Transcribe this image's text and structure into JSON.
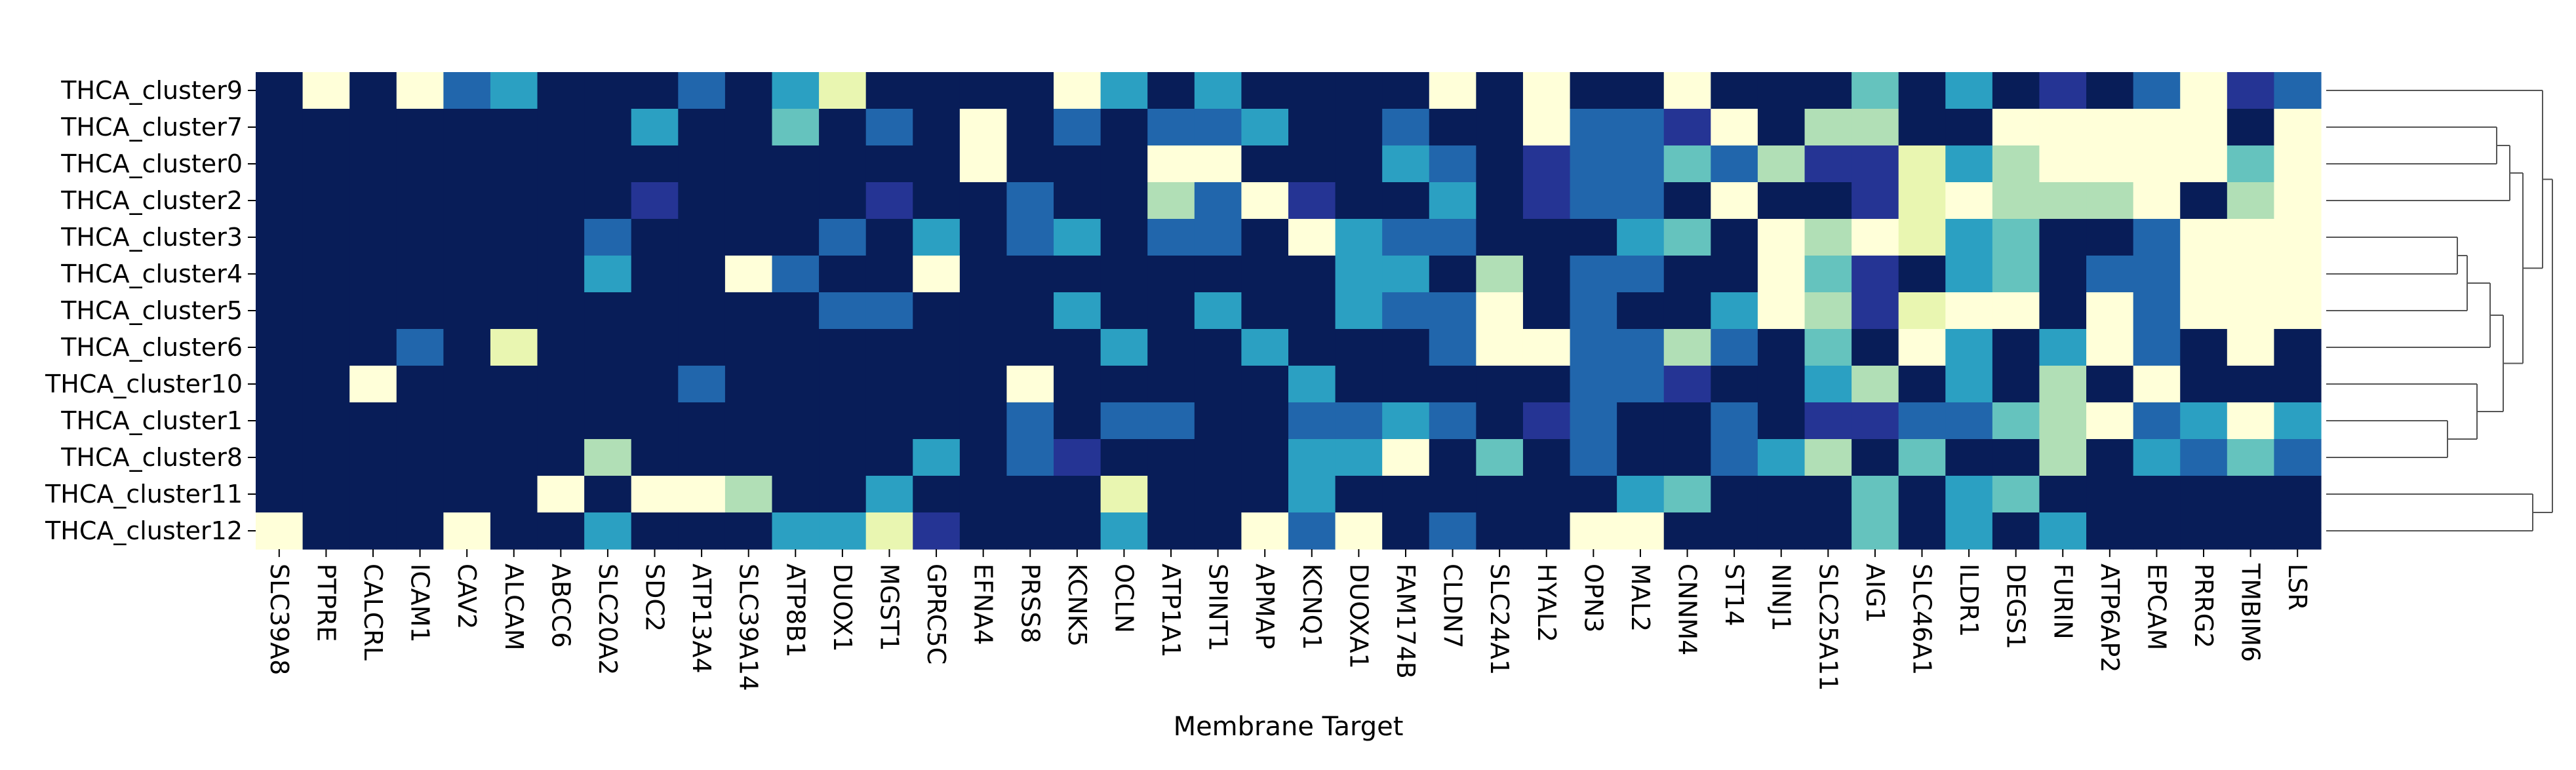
{
  "chart_data": {
    "type": "heatmap",
    "title": "",
    "xlabel": "Membrane Target",
    "ylabel": "",
    "colormap": "YlGnBu",
    "levels": [
      "#ffffd9",
      "#e9f6b1",
      "#b1dfb6",
      "#65c3be",
      "#2ba0c2",
      "#2166ac",
      "#253494",
      "#081d58"
    ],
    "dendrogram": "right",
    "rows": [
      "THCA_cluster9",
      "THCA_cluster7",
      "THCA_cluster0",
      "THCA_cluster2",
      "THCA_cluster3",
      "THCA_cluster4",
      "THCA_cluster5",
      "THCA_cluster6",
      "THCA_cluster10",
      "THCA_cluster1",
      "THCA_cluster8",
      "THCA_cluster11",
      "THCA_cluster12"
    ],
    "columns": [
      "SLC39A8",
      "PTPRE",
      "CALCRL",
      "ICAM1",
      "CAV2",
      "ALCAM",
      "ABCC6",
      "SLC20A2",
      "SDC2",
      "ATP13A4",
      "SLC39A14",
      "ATP8B1",
      "DUOX1",
      "MGST1",
      "GPRC5C",
      "EFNA4",
      "PRSS8",
      "KCNK5",
      "OCLN",
      "ATP1A1",
      "SPINT1",
      "APMAP",
      "KCNQ1",
      "DUOXA1",
      "FAM174B",
      "CLDN7",
      "SLC24A1",
      "HYAL2",
      "OPN3",
      "MAL2",
      "CNNM4",
      "ST14",
      "NINJ1",
      "SLC25A11",
      "AIG1",
      "SLC46A1",
      "ILDR1",
      "DEGS1",
      "FURIN",
      "ATP6AP2",
      "EPCAM",
      "PRRG2",
      "TMBIM6",
      "LSR"
    ],
    "values": [
      [
        7,
        0,
        7,
        0,
        5,
        4,
        7,
        7,
        7,
        5,
        7,
        4,
        1,
        7,
        7,
        7,
        7,
        0,
        4,
        7,
        4,
        7,
        7,
        7,
        7,
        0,
        7,
        0,
        7,
        7,
        0,
        7,
        7,
        7,
        3,
        7,
        4,
        7,
        6,
        7,
        5,
        0,
        6,
        5
      ],
      [
        7,
        7,
        7,
        7,
        7,
        7,
        7,
        7,
        4,
        7,
        7,
        3,
        7,
        5,
        7,
        0,
        7,
        5,
        7,
        5,
        5,
        4,
        7,
        7,
        5,
        7,
        7,
        0,
        5,
        5,
        6,
        0,
        7,
        2,
        2,
        7,
        7,
        0,
        0,
        0,
        0,
        0,
        7,
        0
      ],
      [
        7,
        7,
        7,
        7,
        7,
        7,
        7,
        7,
        7,
        7,
        7,
        7,
        7,
        7,
        7,
        0,
        7,
        7,
        7,
        0,
        0,
        7,
        7,
        7,
        4,
        5,
        7,
        6,
        5,
        5,
        3,
        5,
        2,
        6,
        6,
        1,
        4,
        2,
        0,
        0,
        0,
        0,
        3,
        0
      ],
      [
        7,
        7,
        7,
        7,
        7,
        7,
        7,
        7,
        6,
        7,
        7,
        7,
        7,
        6,
        7,
        7,
        5,
        7,
        7,
        2,
        5,
        0,
        6,
        7,
        7,
        4,
        7,
        6,
        5,
        5,
        7,
        0,
        7,
        7,
        6,
        1,
        0,
        2,
        2,
        2,
        0,
        7,
        2,
        0
      ],
      [
        7,
        7,
        7,
        7,
        7,
        7,
        7,
        5,
        7,
        7,
        7,
        7,
        5,
        7,
        4,
        7,
        5,
        4,
        7,
        5,
        5,
        7,
        0,
        4,
        5,
        5,
        7,
        7,
        7,
        4,
        3,
        7,
        0,
        2,
        0,
        1,
        4,
        3,
        7,
        7,
        5,
        0,
        0,
        0
      ],
      [
        7,
        7,
        7,
        7,
        7,
        7,
        7,
        4,
        7,
        7,
        0,
        5,
        7,
        7,
        0,
        7,
        7,
        7,
        7,
        7,
        7,
        7,
        7,
        4,
        4,
        7,
        2,
        7,
        5,
        5,
        7,
        7,
        0,
        3,
        6,
        7,
        4,
        3,
        7,
        5,
        5,
        0,
        0,
        0
      ],
      [
        7,
        7,
        7,
        7,
        7,
        7,
        7,
        7,
        7,
        7,
        7,
        7,
        5,
        5,
        7,
        7,
        7,
        4,
        7,
        7,
        4,
        7,
        7,
        4,
        5,
        5,
        0,
        7,
        5,
        7,
        7,
        4,
        0,
        2,
        6,
        1,
        0,
        0,
        7,
        0,
        5,
        0,
        0,
        0
      ],
      [
        7,
        7,
        7,
        5,
        7,
        1,
        7,
        7,
        7,
        7,
        7,
        7,
        7,
        7,
        7,
        7,
        7,
        7,
        4,
        7,
        7,
        4,
        7,
        7,
        7,
        5,
        0,
        0,
        5,
        5,
        2,
        5,
        7,
        3,
        7,
        0,
        4,
        7,
        4,
        0,
        5,
        7,
        0,
        7
      ],
      [
        7,
        7,
        0,
        7,
        7,
        7,
        7,
        7,
        7,
        5,
        7,
        7,
        7,
        7,
        7,
        7,
        0,
        7,
        7,
        7,
        7,
        7,
        4,
        7,
        7,
        7,
        7,
        7,
        5,
        5,
        6,
        7,
        7,
        4,
        2,
        7,
        4,
        7,
        2,
        7,
        0,
        7,
        7,
        7
      ],
      [
        7,
        7,
        7,
        7,
        7,
        7,
        7,
        7,
        7,
        7,
        7,
        7,
        7,
        7,
        7,
        7,
        5,
        7,
        5,
        5,
        7,
        7,
        5,
        5,
        4,
        5,
        7,
        6,
        5,
        7,
        7,
        5,
        7,
        6,
        6,
        5,
        5,
        3,
        2,
        0,
        5,
        4,
        0,
        4
      ],
      [
        7,
        7,
        7,
        7,
        7,
        7,
        7,
        2,
        7,
        7,
        7,
        7,
        7,
        7,
        4,
        7,
        5,
        6,
        7,
        7,
        7,
        7,
        4,
        4,
        0,
        7,
        3,
        7,
        5,
        7,
        7,
        5,
        4,
        2,
        7,
        3,
        7,
        7,
        2,
        7,
        4,
        5,
        3,
        5
      ],
      [
        7,
        7,
        7,
        7,
        7,
        7,
        0,
        7,
        0,
        0,
        2,
        7,
        7,
        4,
        7,
        7,
        7,
        7,
        1,
        7,
        7,
        7,
        4,
        7,
        7,
        7,
        7,
        7,
        7,
        4,
        3,
        7,
        7,
        7,
        3,
        7,
        4,
        3,
        7,
        7,
        7,
        7,
        7,
        7
      ],
      [
        0,
        7,
        7,
        7,
        0,
        7,
        7,
        4,
        7,
        7,
        7,
        4,
        4,
        1,
        6,
        7,
        7,
        7,
        4,
        7,
        7,
        0,
        5,
        0,
        7,
        5,
        7,
        7,
        0,
        0,
        7,
        7,
        7,
        7,
        3,
        7,
        4,
        7,
        4,
        7,
        7,
        7,
        7,
        7
      ]
    ]
  }
}
